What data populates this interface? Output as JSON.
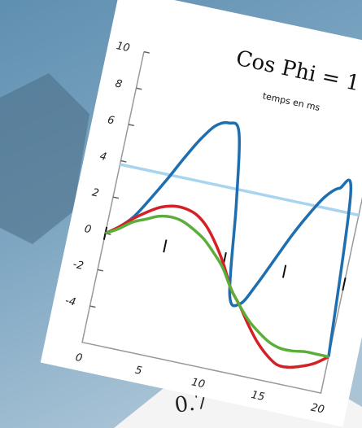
{
  "chart_data": {
    "type": "line",
    "title": "Cos Phi = 1",
    "subtitle": "temps en ms",
    "x": [
      0,
      1,
      2,
      3,
      4,
      5,
      6,
      7,
      8,
      9,
      10,
      11,
      12,
      13,
      14,
      15,
      16,
      17,
      18,
      19,
      20
    ],
    "series": [
      {
        "color": "#a8d4f0",
        "values": [
          3.8,
          3.8,
          3.8,
          3.8,
          3.8,
          3.8,
          3.8,
          3.8,
          3.8,
          3.8,
          3.8,
          3.8,
          3.8,
          3.8,
          3.8,
          3.8,
          3.8,
          3.8,
          3.8,
          3.8,
          3.8
        ]
      },
      {
        "color": "#1f6fb0",
        "values": [
          0,
          0.5,
          1.2,
          2.3,
          3.5,
          4.8,
          6,
          6.9,
          7.2,
          6.8,
          3,
          -1.8,
          -2.2,
          -1,
          0.5,
          2,
          3.3,
          4.4,
          5,
          4.8,
          -4
        ]
      },
      {
        "color": "#d42027",
        "values": [
          0,
          0.5,
          1.1,
          1.6,
          2,
          2.2,
          2.2,
          2,
          1.5,
          0.7,
          -0.3,
          -1.5,
          -2.3,
          -3.2,
          -4,
          -4.6,
          -5,
          -5,
          -4.8,
          -4.5,
          -4
        ]
      },
      {
        "color": "#5cae3a",
        "values": [
          0,
          0.4,
          0.9,
          1.2,
          1.5,
          1.6,
          1.5,
          1.2,
          0.8,
          0.2,
          -0.5,
          -1.5,
          -2.3,
          -3,
          -3.5,
          -3.9,
          -4.1,
          -4.1,
          -4,
          -4,
          -4
        ]
      }
    ],
    "xlim": [
      0,
      20
    ],
    "xticks": [
      0,
      5,
      10,
      15,
      20
    ],
    "ylim": [
      -6,
      10
    ],
    "yticks": [
      -4,
      -2,
      0,
      2,
      4,
      6,
      8,
      10
    ]
  },
  "background_card": {
    "text": "0.7"
  }
}
